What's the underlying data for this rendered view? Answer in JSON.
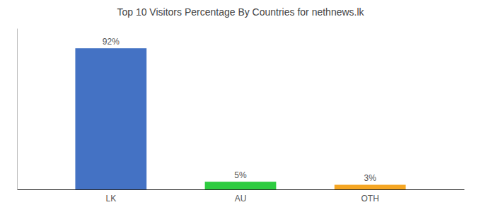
{
  "chart_data": {
    "type": "bar",
    "title": "Top 10 Visitors Percentage By Countries for nethnews.lk",
    "categories": [
      "LK",
      "AU",
      "OTH"
    ],
    "values": [
      92,
      5,
      3
    ],
    "value_labels": [
      "92%",
      "5%",
      "3%"
    ],
    "colors": [
      "#4472c4",
      "#2ecc40",
      "#f5a623"
    ],
    "ylim": [
      0,
      105
    ],
    "data_labels": true,
    "tick_labels": "x",
    "grid": false
  }
}
